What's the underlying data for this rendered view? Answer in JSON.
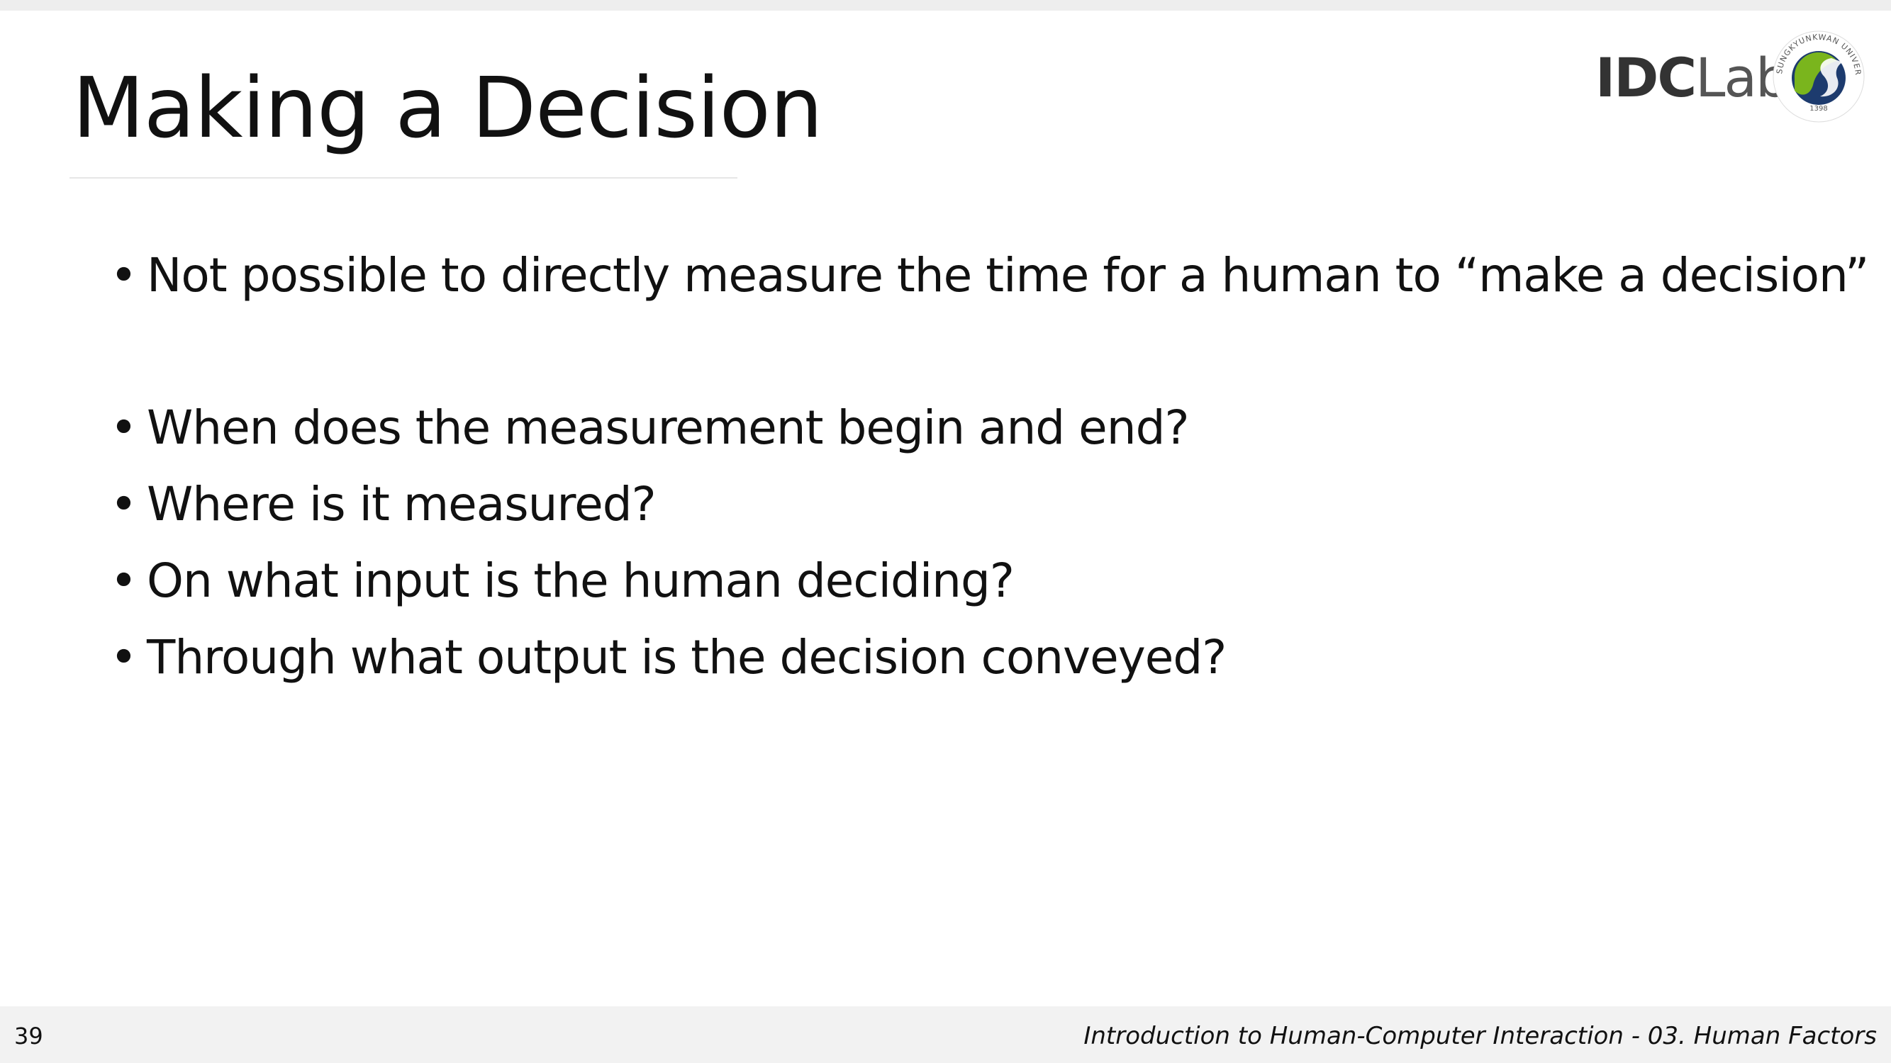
{
  "slide": {
    "title": "Making a Decision",
    "bullets": [
      "Not possible to directly measure the time for a human to “make a decision”",
      "When does the measurement begin and end?",
      "Where is it measured?",
      "On what input is the human deciding?",
      "Through what output is the decision conveyed?"
    ]
  },
  "branding": {
    "lab_logo_bold": "IDC",
    "lab_logo_light": "Lab",
    "university_seal_text": "SUNGKYUNKWAN UNIVERSITY",
    "university_seal_year": "1398",
    "colors": {
      "seal_green": "#7ab51d",
      "seal_navy": "#1d3b6e",
      "logo_gray": "#3a3a3a"
    }
  },
  "footer": {
    "page_number": "39",
    "caption": "Introduction to Human-Computer Interaction - 03. Human Factors"
  }
}
